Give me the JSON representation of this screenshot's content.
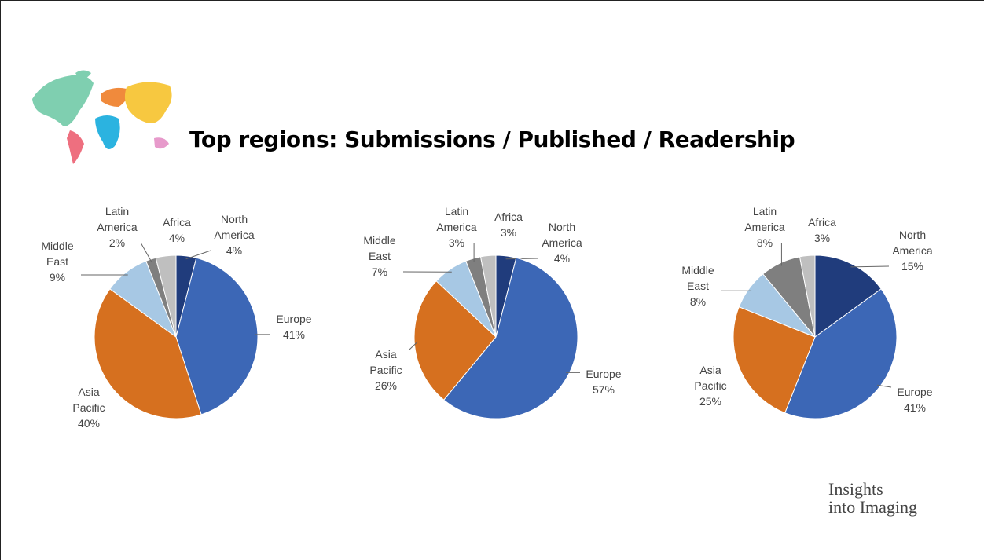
{
  "title": "Top regions: Submissions / Published / Readership",
  "logo": [
    "Insights",
    "into Imaging"
  ],
  "chart_data": [
    {
      "type": "pie",
      "categories": [
        "North America",
        "Europe",
        "Asia Pacific",
        "Middle East",
        "Latin America",
        "Africa"
      ],
      "values": [
        4,
        41,
        40,
        9,
        2,
        4
      ],
      "value_labels": [
        "4%",
        "41%",
        "40%",
        "9%",
        "2%",
        "4%"
      ],
      "colors": [
        "#203c7c",
        "#3c67b6",
        "#d6701f",
        "#a7c8e4",
        "#7f7f7f",
        "#bfbfbf"
      ]
    },
    {
      "type": "pie",
      "categories": [
        "North America",
        "Europe",
        "Asia Pacific",
        "Middle East",
        "Latin America",
        "Africa"
      ],
      "values": [
        4,
        57,
        26,
        7,
        3,
        3
      ],
      "value_labels": [
        "4%",
        "57%",
        "26%",
        "7%",
        "3%",
        "3%"
      ],
      "colors": [
        "#203c7c",
        "#3c67b6",
        "#d6701f",
        "#a7c8e4",
        "#7f7f7f",
        "#bfbfbf"
      ]
    },
    {
      "type": "pie",
      "categories": [
        "North America",
        "Europe",
        "Asia Pacific",
        "Middle East",
        "Latin America",
        "Africa"
      ],
      "values": [
        15,
        41,
        25,
        8,
        8,
        3
      ],
      "value_labels": [
        "15%",
        "41%",
        "25%",
        "8%",
        "8%",
        "3%"
      ],
      "colors": [
        "#203c7c",
        "#3c67b6",
        "#d6701f",
        "#a7c8e4",
        "#7f7f7f",
        "#bfbfbf"
      ]
    }
  ]
}
